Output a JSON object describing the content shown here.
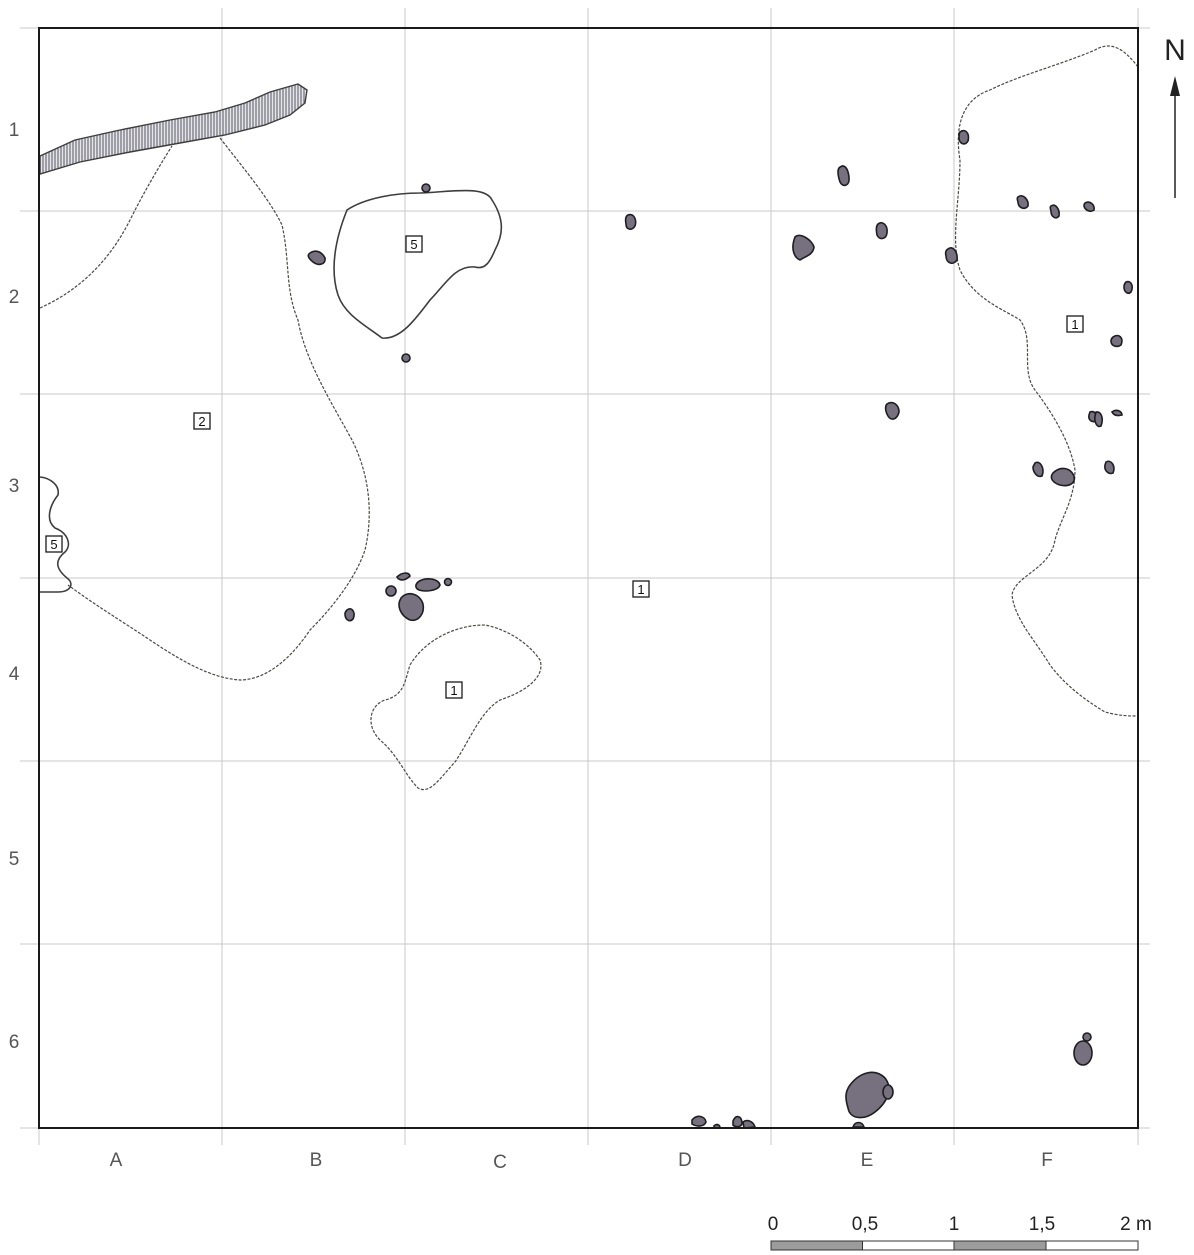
{
  "map": {
    "columns": [
      "A",
      "B",
      "C",
      "D",
      "E",
      "F"
    ],
    "rows": [
      "1",
      "2",
      "3",
      "4",
      "5",
      "6"
    ],
    "north_label": "N",
    "layer_labels": [
      "5",
      "2",
      "5",
      "1",
      "1",
      "1"
    ],
    "scale": {
      "labels": [
        "0",
        "0,5",
        "1",
        "1,5",
        "2 m"
      ],
      "segment_colors": [
        "#9c9c9c",
        "#ffffff",
        "#9c9c9c",
        "#ffffff"
      ]
    },
    "colors": {
      "stone_fill": "#77707f",
      "hatched_band": "#6f6f7a",
      "grid": "#c9c9c9"
    }
  }
}
